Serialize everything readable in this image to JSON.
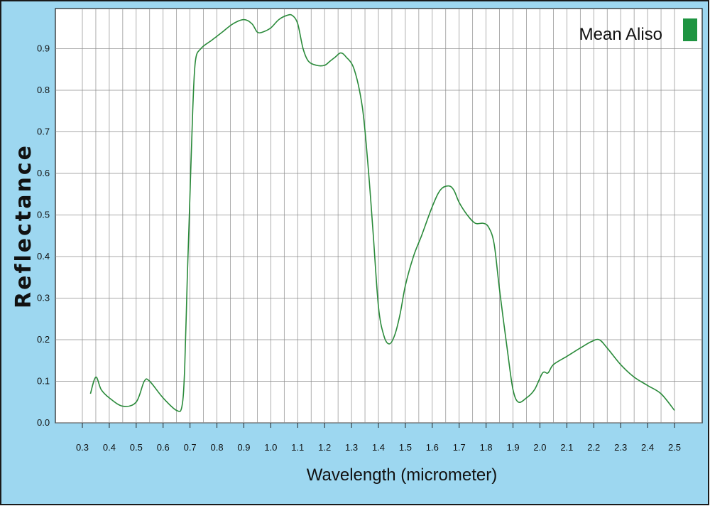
{
  "chart_data": {
    "type": "line",
    "title": "",
    "xlabel": "Wavelength (micrometer)",
    "ylabel": "Reflectance",
    "xlim": [
      0.3,
      2.5
    ],
    "ylim": [
      0.0,
      1.0
    ],
    "x_ticks": [
      "0.3",
      "0.4",
      "0.5",
      "0.6",
      "0.7",
      "0.8",
      "0.9",
      "1.0",
      "1.1",
      "1.2",
      "1.3",
      "1.4",
      "1.5",
      "1.6",
      "1.7",
      "1.8",
      "1.9",
      "2.0",
      "2.1",
      "2.2",
      "2.3",
      "2.4",
      "2.5"
    ],
    "y_ticks": [
      "0.0",
      "0.1",
      "0.2",
      "0.3",
      "0.4",
      "0.5",
      "0.6",
      "0.7",
      "0.8",
      "0.9"
    ],
    "grid": true,
    "legend": {
      "position": "top-right"
    },
    "colors": {
      "line": "#2a8a3a",
      "legend_swatch": "#1e9441",
      "frame_band": "#9dd7f0",
      "grid": "#8c8c8c"
    },
    "series": [
      {
        "name": "Mean Aliso",
        "x": [
          0.33,
          0.35,
          0.37,
          0.4,
          0.45,
          0.5,
          0.53,
          0.55,
          0.6,
          0.65,
          0.67,
          0.68,
          0.69,
          0.7,
          0.71,
          0.72,
          0.74,
          0.78,
          0.82,
          0.86,
          0.9,
          0.93,
          0.95,
          0.97,
          1.0,
          1.03,
          1.06,
          1.08,
          1.1,
          1.12,
          1.14,
          1.17,
          1.2,
          1.22,
          1.24,
          1.26,
          1.28,
          1.31,
          1.34,
          1.36,
          1.38,
          1.4,
          1.42,
          1.44,
          1.46,
          1.48,
          1.5,
          1.53,
          1.56,
          1.6,
          1.63,
          1.66,
          1.68,
          1.7,
          1.73,
          1.76,
          1.79,
          1.81,
          1.83,
          1.85,
          1.88,
          1.9,
          1.92,
          1.95,
          1.98,
          2.01,
          2.03,
          2.05,
          2.1,
          2.15,
          2.19,
          2.22,
          2.25,
          2.3,
          2.35,
          2.4,
          2.45,
          2.5
        ],
        "y": [
          0.07,
          0.11,
          0.08,
          0.06,
          0.04,
          0.05,
          0.1,
          0.1,
          0.06,
          0.03,
          0.04,
          0.13,
          0.35,
          0.55,
          0.75,
          0.87,
          0.9,
          0.92,
          0.94,
          0.96,
          0.97,
          0.96,
          0.94,
          0.94,
          0.95,
          0.97,
          0.98,
          0.98,
          0.96,
          0.9,
          0.87,
          0.86,
          0.86,
          0.87,
          0.88,
          0.89,
          0.88,
          0.85,
          0.76,
          0.63,
          0.46,
          0.28,
          0.21,
          0.19,
          0.21,
          0.26,
          0.33,
          0.4,
          0.45,
          0.52,
          0.56,
          0.57,
          0.56,
          0.53,
          0.5,
          0.48,
          0.48,
          0.47,
          0.43,
          0.32,
          0.17,
          0.08,
          0.05,
          0.06,
          0.08,
          0.12,
          0.12,
          0.14,
          0.16,
          0.18,
          0.195,
          0.2,
          0.18,
          0.14,
          0.11,
          0.09,
          0.07,
          0.03
        ]
      }
    ]
  }
}
